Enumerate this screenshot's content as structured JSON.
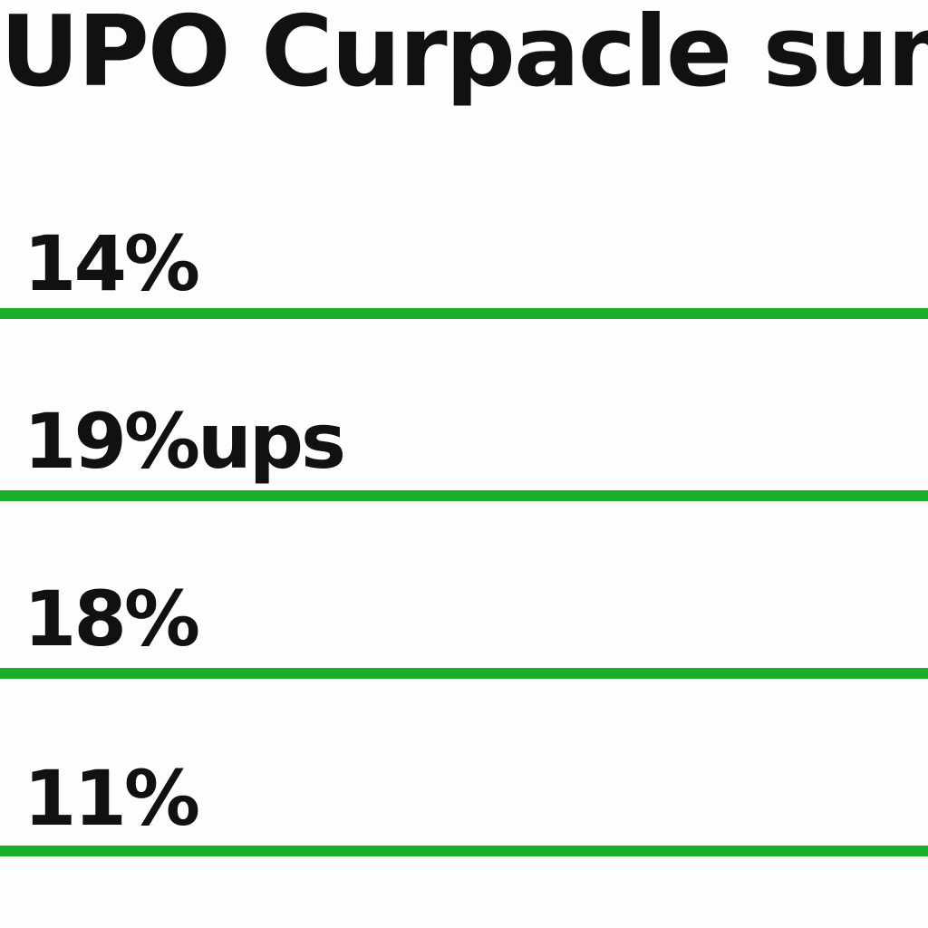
{
  "title": "UPO Curpacle sum",
  "rows": [
    {
      "value": "14%"
    },
    {
      "value": "19%ups"
    },
    {
      "value": "18%"
    },
    {
      "value": "11%"
    }
  ],
  "colors": {
    "divider": "#1aae2a",
    "text": "#111111",
    "background": "#fdfdfd"
  }
}
